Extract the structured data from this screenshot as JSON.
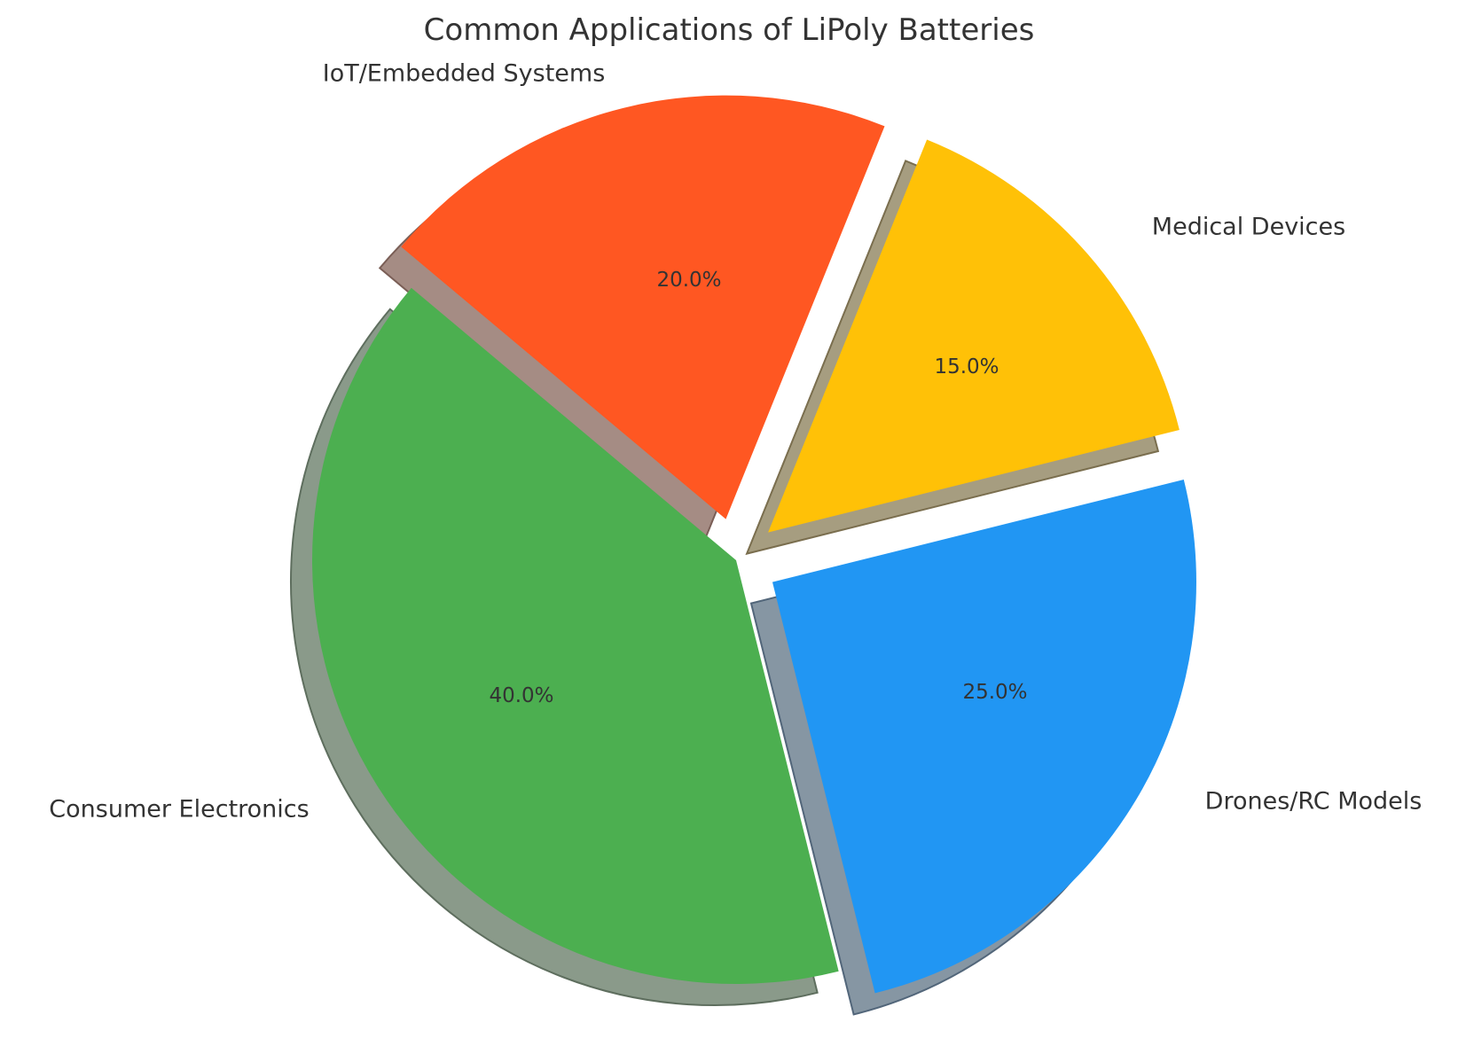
{
  "chart_data": {
    "type": "pie",
    "title": "Common Applications of LiPoly Batteries",
    "categories": [
      "Consumer Electronics",
      "Drones/RC Models",
      "Medical Devices",
      "IoT/Embedded Systems"
    ],
    "values": [
      40,
      25,
      15,
      20
    ],
    "percent_labels": [
      "40.0%",
      "25.0%",
      "15.0%",
      "20.0%"
    ],
    "colors": [
      "#4CAF50",
      "#2196F3",
      "#FFC107",
      "#FF5722"
    ],
    "explode": [
      0,
      0.1,
      0.1,
      0.1
    ],
    "startangle": 140,
    "shadow": true,
    "legend": "none"
  },
  "title": "Common Applications of LiPoly Batteries",
  "slices": [
    {
      "label": "Consumer Electronics",
      "pct": "40.0%",
      "color": "#4CAF50"
    },
    {
      "label": "Drones/RC Models",
      "pct": "25.0%",
      "color": "#2196F3"
    },
    {
      "label": "Medical Devices",
      "pct": "15.0%",
      "color": "#FFC107"
    },
    {
      "label": "IoT/Embedded Systems",
      "pct": "20.0%",
      "color": "#FF5722"
    }
  ]
}
